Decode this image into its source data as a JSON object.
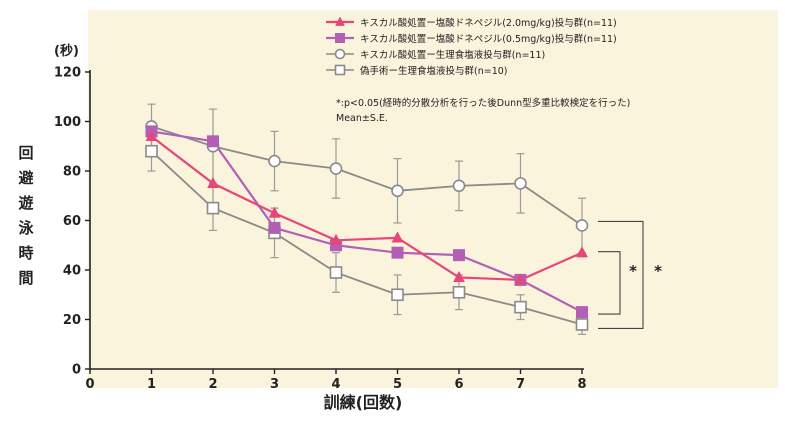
{
  "chart_data": {
    "type": "line",
    "title": "",
    "ylabel": "回避遊泳時間",
    "yunit": "(秒)",
    "xlabel": "訓練(回数)",
    "x": [
      1,
      2,
      3,
      4,
      5,
      6,
      7,
      8
    ],
    "xlim": [
      0,
      8
    ],
    "ylim": [
      0,
      120
    ],
    "xticks": [
      "0",
      "1",
      "2",
      "3",
      "4",
      "5",
      "6",
      "7",
      "8"
    ],
    "yticks": [
      "0",
      "20",
      "40",
      "60",
      "80",
      "100",
      "120"
    ],
    "grid": false,
    "legend_position": "top-right",
    "background_color": "#fbf4dc",
    "series": [
      {
        "name": "キスカル酸処置ー塩酸ドネペジル(2.0mg/kg)投与群(n=11)",
        "color": "#e8457a",
        "marker": "triangle",
        "values": [
          94,
          75,
          63,
          52,
          53,
          37,
          36,
          47
        ],
        "errors": [
          0,
          0,
          0,
          0,
          0,
          0,
          0,
          0
        ]
      },
      {
        "name": "キスカル酸処置ー塩酸ドネペジル(0.5mg/kg)投与群(n=11)",
        "color": "#b260b6",
        "marker": "square-filled",
        "values": [
          96,
          92,
          57,
          50,
          47,
          46,
          36,
          23
        ],
        "errors": [
          0,
          0,
          0,
          0,
          0,
          0,
          0,
          0
        ]
      },
      {
        "name": "キスカル酸処置ー生理食塩液投与群(n=11)",
        "color": "#8a8a8a",
        "marker": "circle-open",
        "values": [
          98,
          90,
          84,
          81,
          72,
          74,
          75,
          58
        ],
        "errors": [
          9,
          15,
          12,
          12,
          13,
          10,
          12,
          11
        ]
      },
      {
        "name": "偽手術ー生理食塩液投与群(n=10)",
        "color": "#8a8a8a",
        "marker": "square-open",
        "values": [
          88,
          65,
          55,
          39,
          30,
          31,
          25,
          18
        ],
        "errors": [
          8,
          9,
          10,
          8,
          8,
          7,
          5,
          4
        ]
      }
    ],
    "annotations": [
      "*:p<0.05(経時的分散分析を行った後Dunn型多重比較検定を行った)",
      "Mean±S.E."
    ],
    "significance_marks": [
      "*",
      "*"
    ]
  }
}
